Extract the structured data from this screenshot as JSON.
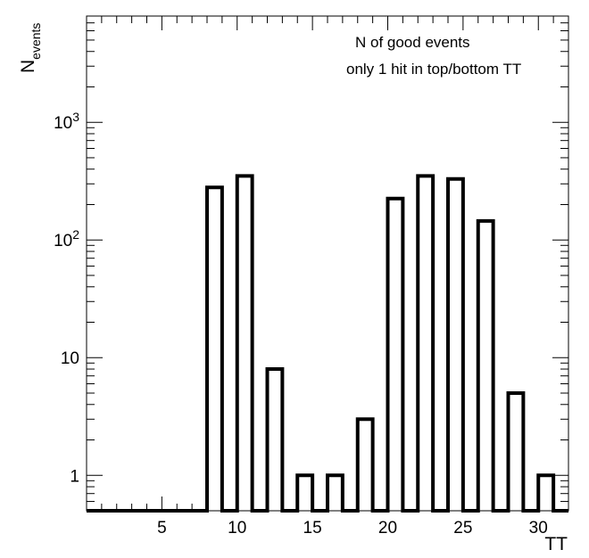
{
  "chart_data": {
    "type": "bar",
    "title": "",
    "xlabel": "TT",
    "ylabel_main": "N",
    "ylabel_sub": "events",
    "y_scale": "log",
    "ylim": [
      0.5,
      8000
    ],
    "xlim": [
      0,
      32
    ],
    "grid": false,
    "annotations": [
      "N of good events",
      "only 1 hit in top/bottom TT"
    ],
    "x_ticks": [
      {
        "value": 5,
        "label": "5"
      },
      {
        "value": 10,
        "label": "10"
      },
      {
        "value": 15,
        "label": "15"
      },
      {
        "value": 20,
        "label": "20"
      },
      {
        "value": 25,
        "label": "25"
      },
      {
        "value": 30,
        "label": "30"
      }
    ],
    "y_ticks": [
      {
        "value": 1,
        "base": "1",
        "exp": ""
      },
      {
        "value": 10,
        "base": "10",
        "exp": ""
      },
      {
        "value": 100,
        "base": "10",
        "exp": "2"
      },
      {
        "value": 1000,
        "base": "10",
        "exp": "3"
      }
    ],
    "bin_width": 1,
    "bins": [
      {
        "x": 0,
        "value": 0
      },
      {
        "x": 1,
        "value": 0
      },
      {
        "x": 2,
        "value": 0
      },
      {
        "x": 3,
        "value": 0
      },
      {
        "x": 4,
        "value": 0
      },
      {
        "x": 5,
        "value": 0
      },
      {
        "x": 6,
        "value": 0
      },
      {
        "x": 7,
        "value": 0
      },
      {
        "x": 8,
        "value": 280
      },
      {
        "x": 9,
        "value": 0
      },
      {
        "x": 10,
        "value": 350
      },
      {
        "x": 11,
        "value": 0
      },
      {
        "x": 12,
        "value": 8
      },
      {
        "x": 13,
        "value": 0
      },
      {
        "x": 14,
        "value": 1
      },
      {
        "x": 15,
        "value": 0
      },
      {
        "x": 16,
        "value": 1
      },
      {
        "x": 17,
        "value": 0
      },
      {
        "x": 18,
        "value": 3
      },
      {
        "x": 19,
        "value": 0
      },
      {
        "x": 20,
        "value": 225
      },
      {
        "x": 21,
        "value": 0
      },
      {
        "x": 22,
        "value": 350
      },
      {
        "x": 23,
        "value": 0
      },
      {
        "x": 24,
        "value": 330
      },
      {
        "x": 25,
        "value": 0
      },
      {
        "x": 26,
        "value": 145
      },
      {
        "x": 27,
        "value": 0
      },
      {
        "x": 28,
        "value": 5
      },
      {
        "x": 29,
        "value": 0
      },
      {
        "x": 30,
        "value": 1
      },
      {
        "x": 31,
        "value": 0
      }
    ]
  }
}
